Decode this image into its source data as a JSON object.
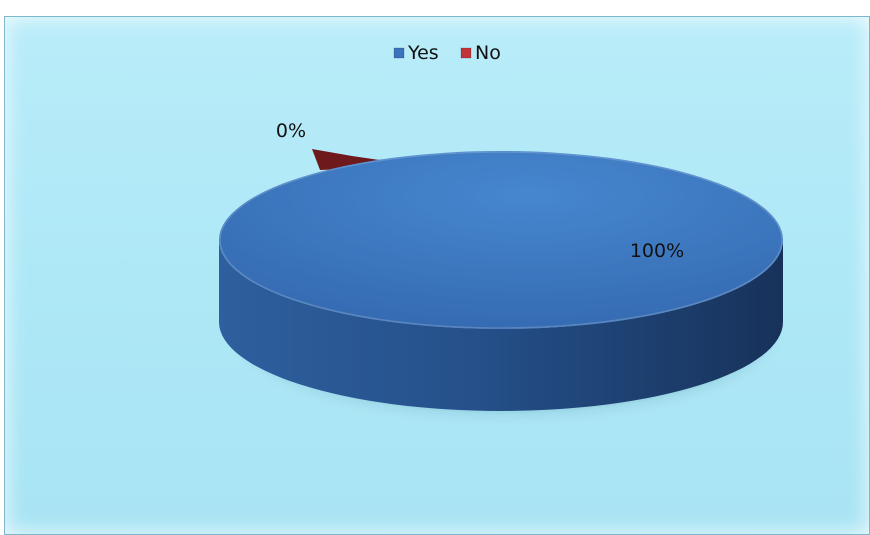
{
  "chart_data": {
    "type": "pie",
    "title": "",
    "categories": [
      "Yes",
      "No"
    ],
    "values": [
      100,
      0
    ],
    "data_labels": [
      "100%",
      "0%"
    ],
    "legend": {
      "position": "top",
      "entries": [
        "Yes",
        "No"
      ]
    },
    "colors": {
      "Yes": "#3a73bd",
      "No": "#c0343a",
      "background": "#aee8f7"
    },
    "style": "3d-pie"
  }
}
